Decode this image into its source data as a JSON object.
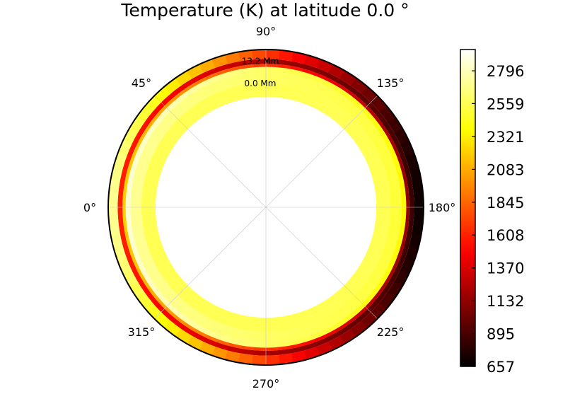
{
  "chart_data": {
    "type": "heatmap",
    "projection": "polar",
    "title": "Temperature (K) at latitude 0.0 °",
    "angle_ticks": [
      {
        "angle": 270,
        "label": "270°"
      },
      {
        "angle": 225,
        "label": "225°"
      },
      {
        "angle": 180,
        "label": "180°"
      },
      {
        "angle": 135,
        "label": "135°"
      },
      {
        "angle": 90,
        "label": "90°"
      },
      {
        "angle": 45,
        "label": "45°"
      },
      {
        "angle": 0,
        "label": "0°"
      },
      {
        "angle": 315,
        "label": "315°"
      }
    ],
    "radius_labels": [
      {
        "value": 0.0,
        "label": "0.0 Mm"
      },
      {
        "value": 13.2,
        "label": "13.2 Mm"
      }
    ],
    "colorbar": {
      "colormap": "hot",
      "min": 657,
      "max": 2950,
      "ticks": [
        2796,
        2559,
        2321,
        2083,
        1845,
        1608,
        1370,
        1132,
        895,
        657
      ]
    },
    "shell_profile": {
      "description_free": true,
      "dayside_center_angle": 0,
      "nightside_center_angle": 180,
      "layers": [
        {
          "r0": 0.0,
          "r1": 0.7,
          "T_day": 2950,
          "T_night": 2950
        },
        {
          "r0": 0.7,
          "r1": 0.79,
          "T_day": 2560,
          "T_night": 2560
        },
        {
          "r0": 0.79,
          "r1": 0.86,
          "T_day": 2700,
          "T_night": 2500
        },
        {
          "r0": 0.86,
          "r1": 0.89,
          "T_day": 2850,
          "T_night": 2350
        },
        {
          "r0": 0.89,
          "r1": 0.91,
          "T_day": 2200,
          "T_night": 1150
        },
        {
          "r0": 0.91,
          "r1": 0.94,
          "T_day": 1600,
          "T_night": 850
        },
        {
          "r0": 0.94,
          "r1": 1.0,
          "T_day": 2700,
          "T_night": 700
        }
      ]
    }
  }
}
